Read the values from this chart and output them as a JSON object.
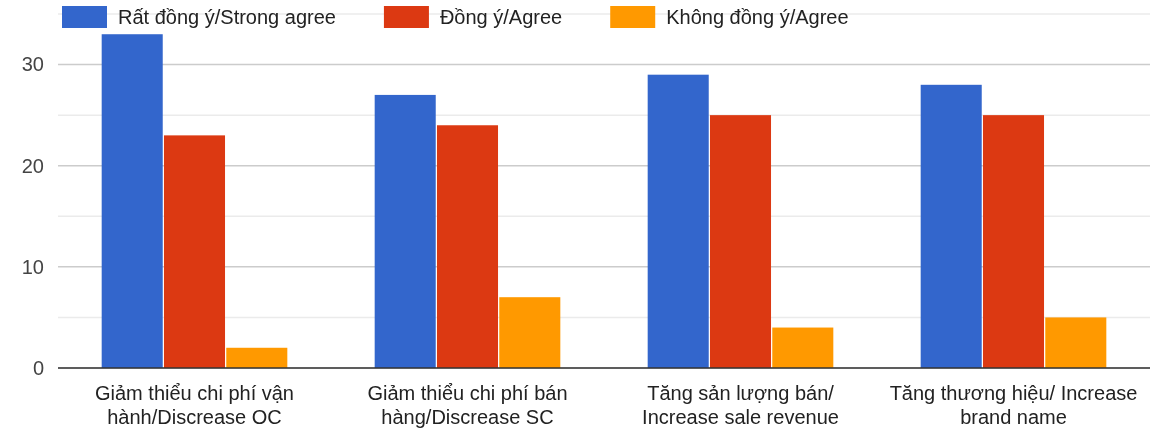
{
  "chart_data": {
    "type": "bar",
    "categories": [
      "Giảm thiểu chi phí vận hành/Discrease OC",
      "Giảm thiểu chi phí bán hàng/Discrease SC",
      "Tăng sản lượng bán/ Increase sale revenue",
      "Tăng thương hiệu/ Increase brand name"
    ],
    "series": [
      {
        "name": "Rất đồng ý/Strong agree",
        "color": "#3366cc",
        "values": [
          33,
          27,
          29,
          28
        ]
      },
      {
        "name": "Đồng ý/Agree",
        "color": "#dc3912",
        "values": [
          23,
          24,
          25,
          25
        ]
      },
      {
        "name": "Không đồng ý/Agree",
        "color": "#ff9900",
        "values": [
          2,
          7,
          4,
          5
        ]
      }
    ],
    "ylim": [
      0,
      35
    ],
    "yticks": [
      0,
      {
        "value": 5,
        "label": null
      },
      10,
      {
        "value": 15,
        "label": null
      },
      20,
      {
        "value": 25,
        "label": null
      },
      30,
      {
        "value": 35,
        "label": null
      }
    ],
    "grid": true,
    "legend": "top"
  }
}
